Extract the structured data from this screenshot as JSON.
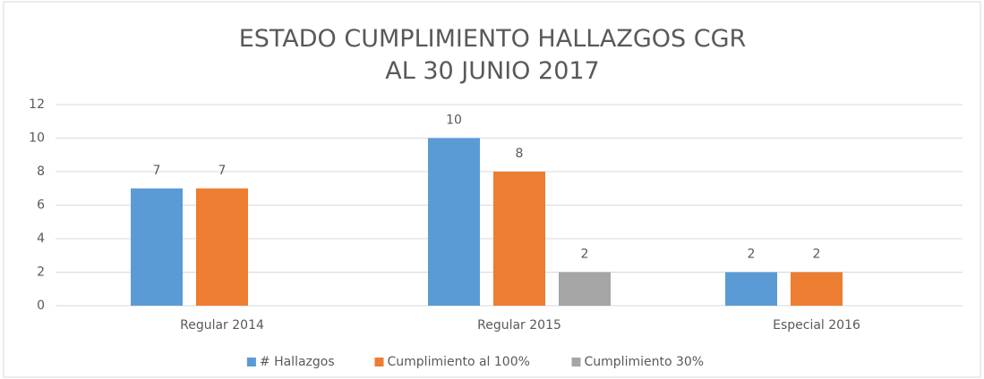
{
  "chart_data": {
    "type": "bar",
    "title": "ESTADO CUMPLIMIENTO HALLAZGOS CGR AL 30 JUNIO 2017",
    "categories": [
      "Regular 2014",
      "Regular 2015",
      "Especial 2016"
    ],
    "series": [
      {
        "name": "# Hallazgos",
        "color": "#5b9bd5",
        "values": [
          7,
          10,
          2
        ]
      },
      {
        "name": "Cumplimiento al 100%",
        "color": "#ed7d31",
        "values": [
          7,
          8,
          2
        ]
      },
      {
        "name": "Cumplimiento 30%",
        "color": "#a5a5a5",
        "values": [
          null,
          2,
          null
        ]
      }
    ],
    "ylim": [
      0,
      12
    ],
    "yticks": [
      0,
      2,
      4,
      6,
      8,
      10,
      12
    ],
    "grid": true,
    "legend": "bottom"
  }
}
